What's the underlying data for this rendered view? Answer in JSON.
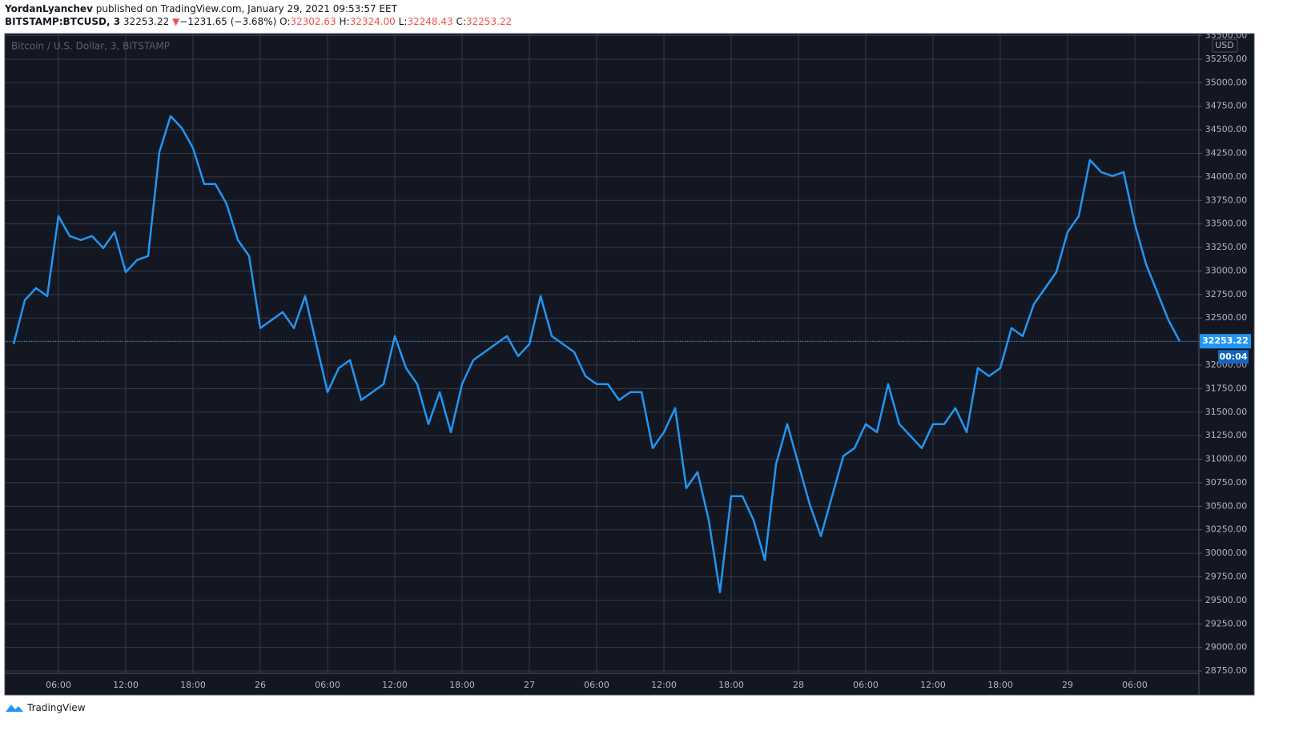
{
  "header": {
    "author": "YordanLyanchev",
    "published": "published on TradingView.com, January 29, 2021 09:53:57 EET",
    "symbol": "BITSTAMP:BTCUSD, 3",
    "last": "32253.22",
    "arrow": "▼",
    "change": "−1231.65 (−3.68%)",
    "open_label": "O:",
    "open": "32302.63",
    "high_label": "H:",
    "high": "32324.00",
    "low_label": "L:",
    "low": "32248.43",
    "close_label": "C:",
    "close": "32253.22"
  },
  "footer": {
    "brand": "TradingView"
  },
  "chart_data": {
    "type": "line",
    "title": "Bitcoin / U.S. Dollar, 3, BITSTAMP",
    "currency": "USD",
    "countdown": "00:04",
    "color": "#2196f3",
    "grid": true,
    "categories": [
      null,
      null,
      null,
      null,
      "06:00",
      null,
      null,
      null,
      null,
      null,
      "12:00",
      null,
      null,
      null,
      null,
      null,
      "18:00",
      null,
      null,
      null,
      null,
      null,
      "26",
      null,
      null,
      null,
      null,
      null,
      "06:00",
      null,
      null,
      null,
      null,
      null,
      "12:00",
      null,
      null,
      null,
      null,
      null,
      "18:00",
      null,
      null,
      null,
      null,
      null,
      "27",
      null,
      null,
      null,
      null,
      null,
      "06:00",
      null,
      null,
      null,
      null,
      null,
      "12:00",
      null,
      null,
      null,
      null,
      null,
      "18:00",
      null,
      null,
      null,
      null,
      null,
      "28",
      null,
      null,
      null,
      null,
      null,
      "06:00",
      null,
      null,
      null,
      null,
      null,
      "12:00",
      null,
      null,
      null,
      null,
      null,
      "18:00",
      null,
      null,
      null,
      null,
      null,
      "29",
      null,
      null,
      null,
      null,
      null,
      "06:00",
      null,
      null,
      null,
      null
    ],
    "values": [
      32223,
      32690,
      32818,
      32733,
      33583,
      33371,
      33329,
      33371,
      33243,
      33413,
      32988,
      33116,
      33159,
      34264,
      34646,
      34519,
      34306,
      33924,
      33924,
      33711,
      33329,
      33159,
      32393,
      32478,
      32563,
      32393,
      32733,
      32223,
      31713,
      31968,
      32053,
      31628,
      31713,
      31798,
      32308,
      31968,
      31798,
      31373,
      31713,
      31287,
      31798,
      32053,
      32138,
      32223,
      32308,
      32095,
      32223,
      32733,
      32308,
      32223,
      32138,
      31883,
      31798,
      31798,
      31628,
      31713,
      31713,
      31118,
      31287,
      31543,
      30693,
      30863,
      30352,
      29587,
      30607,
      30607,
      30352,
      29927,
      30948,
      31373,
      30948,
      30522,
      30182,
      30607,
      31033,
      31118,
      31373,
      31287,
      31798,
      31373,
      31245,
      31118,
      31373,
      31373,
      31543,
      31287,
      31968,
      31883,
      31968,
      32393,
      32308,
      32648,
      32818,
      32988,
      33413,
      33583,
      34179,
      34051,
      34009,
      34051,
      33498,
      33073,
      32775,
      32478,
      32253.22
    ],
    "ylim": [
      28495,
      35522
    ],
    "yticks": [
      {
        "value": 28750,
        "label": "28750.00"
      },
      {
        "value": 29000,
        "label": "29000.00"
      },
      {
        "value": 29250,
        "label": "29250.00"
      },
      {
        "value": 29500,
        "label": "29500.00"
      },
      {
        "value": 29750,
        "label": "29750.00"
      },
      {
        "value": 30000,
        "label": "30000.00"
      },
      {
        "value": 30250,
        "label": "30250.00"
      },
      {
        "value": 30500,
        "label": "30500.00"
      },
      {
        "value": 30750,
        "label": "30750.00"
      },
      {
        "value": 31000,
        "label": "31000.00"
      },
      {
        "value": 31250,
        "label": "31250.00"
      },
      {
        "value": 31500,
        "label": "31500.00"
      },
      {
        "value": 31750,
        "label": "31750.00"
      },
      {
        "value": 32000,
        "label": "32000.00"
      },
      {
        "value": 32250,
        "label": "32250.00"
      },
      {
        "value": 32500,
        "label": "32500.00"
      },
      {
        "value": 32750,
        "label": "32750.00"
      },
      {
        "value": 33000,
        "label": "33000.00"
      },
      {
        "value": 33250,
        "label": "33250.00"
      },
      {
        "value": 33500,
        "label": "33500.00"
      },
      {
        "value": 33750,
        "label": "33750.00"
      },
      {
        "value": 34000,
        "label": "34000.00"
      },
      {
        "value": 34250,
        "label": "34250.00"
      },
      {
        "value": 34500,
        "label": "34500.00"
      },
      {
        "value": 34750,
        "label": "34750.00"
      },
      {
        "value": 35000,
        "label": "35000.00"
      },
      {
        "value": 35250,
        "label": "35250.00"
      },
      {
        "value": 35500,
        "label": "35500.00"
      }
    ]
  }
}
